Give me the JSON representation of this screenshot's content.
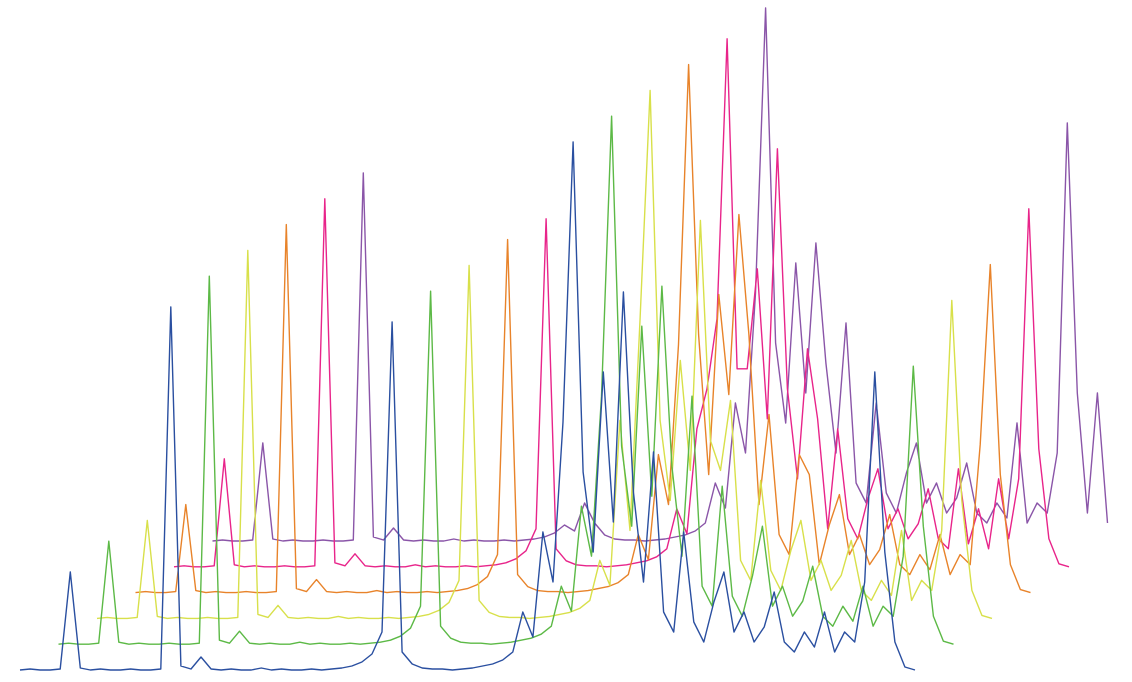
{
  "chart_data": {
    "type": "line",
    "series": [
      {
        "color": "#2a4fa0",
        "values": [
          2,
          3,
          2,
          2,
          3,
          100,
          4,
          2,
          3,
          2,
          2,
          3,
          2,
          2,
          3,
          365,
          6,
          3,
          15,
          3,
          2,
          3,
          2,
          2,
          4,
          2,
          3,
          2,
          2,
          3,
          2,
          3,
          4,
          6,
          10,
          18,
          40,
          350,
          20,
          8,
          4,
          3,
          3,
          2,
          3,
          4,
          6,
          8,
          12,
          20,
          60,
          35,
          140,
          90,
          250,
          530,
          200,
          120,
          300,
          150,
          380,
          180,
          90,
          220,
          60,
          40,
          140,
          50,
          30,
          70,
          100,
          40,
          60,
          30,
          45,
          80,
          30,
          20,
          40,
          25,
          60,
          20,
          40,
          30,
          90,
          300,
          120,
          30,
          5,
          2
        ]
      },
      {
        "color": "#5cb946",
        "values": [
          2,
          3,
          2,
          2,
          3,
          105,
          4,
          2,
          3,
          2,
          2,
          3,
          2,
          2,
          3,
          370,
          6,
          3,
          15,
          3,
          2,
          3,
          2,
          2,
          4,
          2,
          3,
          2,
          2,
          3,
          2,
          3,
          4,
          6,
          10,
          18,
          40,
          355,
          20,
          8,
          4,
          3,
          3,
          2,
          3,
          4,
          6,
          8,
          12,
          20,
          60,
          35,
          140,
          90,
          250,
          530,
          200,
          120,
          320,
          150,
          360,
          180,
          90,
          250,
          60,
          40,
          160,
          50,
          30,
          70,
          120,
          40,
          60,
          30,
          45,
          80,
          30,
          20,
          40,
          25,
          60,
          20,
          40,
          30,
          90,
          280,
          120,
          30,
          5,
          2
        ]
      },
      {
        "color": "#d8e04a",
        "values": [
          2,
          3,
          2,
          2,
          3,
          100,
          4,
          2,
          3,
          2,
          2,
          3,
          2,
          2,
          3,
          370,
          6,
          3,
          15,
          3,
          2,
          3,
          2,
          2,
          4,
          2,
          3,
          2,
          2,
          3,
          2,
          3,
          4,
          6,
          10,
          18,
          40,
          355,
          20,
          8,
          4,
          3,
          3,
          2,
          3,
          4,
          6,
          8,
          12,
          20,
          60,
          35,
          200,
          90,
          300,
          530,
          200,
          120,
          260,
          150,
          400,
          180,
          150,
          220,
          60,
          40,
          140,
          50,
          30,
          70,
          100,
          40,
          60,
          30,
          45,
          80,
          30,
          20,
          40,
          25,
          90,
          20,
          40,
          30,
          90,
          320,
          120,
          30,
          5,
          2
        ]
      },
      {
        "color": "#e8832a",
        "values": [
          2,
          3,
          2,
          2,
          3,
          90,
          4,
          2,
          3,
          2,
          2,
          3,
          2,
          2,
          3,
          370,
          6,
          3,
          15,
          3,
          2,
          3,
          2,
          2,
          4,
          2,
          3,
          2,
          2,
          3,
          2,
          3,
          4,
          6,
          10,
          18,
          40,
          355,
          20,
          8,
          4,
          3,
          3,
          2,
          3,
          4,
          6,
          8,
          12,
          20,
          60,
          35,
          140,
          90,
          250,
          530,
          260,
          120,
          300,
          200,
          380,
          260,
          90,
          180,
          60,
          40,
          140,
          120,
          30,
          70,
          100,
          40,
          60,
          30,
          45,
          80,
          30,
          20,
          40,
          25,
          60,
          20,
          40,
          30,
          150,
          330,
          120,
          30,
          5,
          2
        ]
      },
      {
        "color": "#e8248a",
        "values": [
          2,
          3,
          2,
          2,
          3,
          110,
          4,
          2,
          3,
          2,
          2,
          3,
          2,
          2,
          3,
          370,
          6,
          3,
          15,
          3,
          2,
          3,
          2,
          2,
          4,
          2,
          3,
          2,
          2,
          3,
          2,
          3,
          4,
          6,
          10,
          18,
          40,
          350,
          20,
          8,
          4,
          3,
          3,
          2,
          3,
          4,
          6,
          8,
          12,
          20,
          60,
          35,
          140,
          180,
          250,
          530,
          200,
          200,
          300,
          150,
          420,
          180,
          90,
          220,
          150,
          40,
          140,
          50,
          30,
          70,
          100,
          40,
          60,
          30,
          45,
          80,
          30,
          20,
          100,
          25,
          60,
          20,
          90,
          30,
          90,
          360,
          120,
          30,
          5,
          2
        ]
      },
      {
        "color": "#8a55a8",
        "values": [
          2,
          3,
          2,
          2,
          3,
          100,
          4,
          2,
          3,
          2,
          2,
          3,
          2,
          2,
          3,
          370,
          6,
          3,
          15,
          3,
          2,
          3,
          2,
          2,
          4,
          2,
          3,
          2,
          2,
          3,
          2,
          3,
          4,
          6,
          10,
          18,
          12,
          40,
          20,
          8,
          4,
          3,
          3,
          2,
          3,
          4,
          6,
          8,
          12,
          20,
          60,
          35,
          140,
          90,
          250,
          535,
          200,
          120,
          280,
          150,
          300,
          180,
          90,
          220,
          60,
          40,
          140,
          50,
          30,
          70,
          100,
          40,
          60,
          30,
          45,
          80,
          30,
          20,
          40,
          25,
          120,
          20,
          40,
          30,
          90,
          420,
          150,
          30,
          150,
          20
        ]
      }
    ]
  }
}
